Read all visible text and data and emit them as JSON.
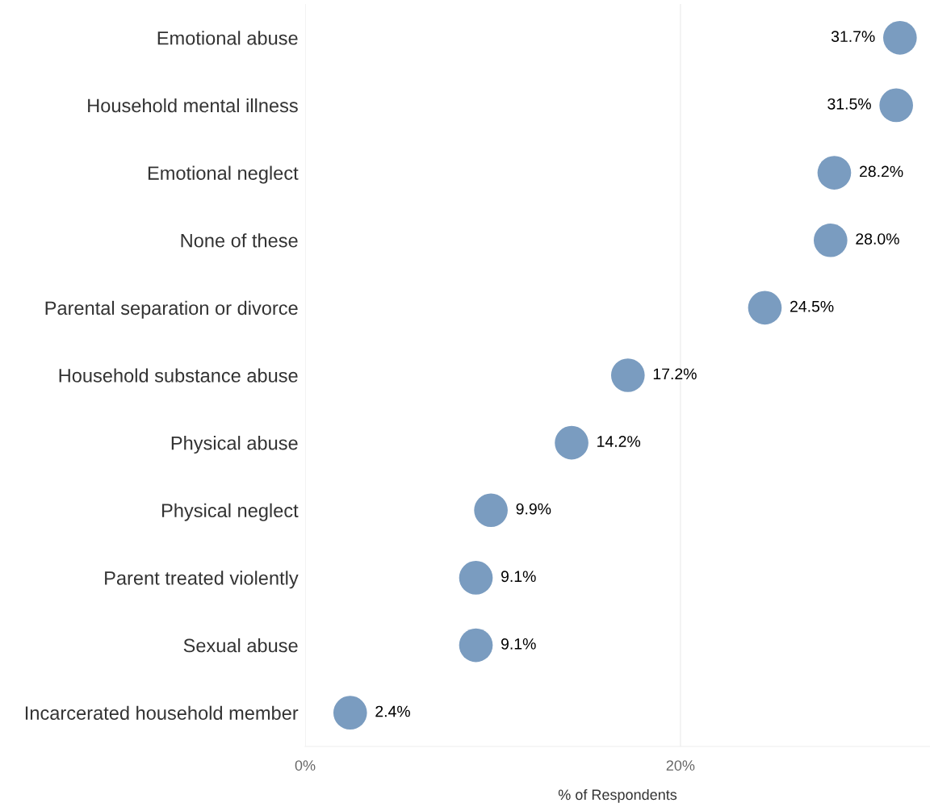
{
  "chart_data": {
    "type": "scatter",
    "orientation": "horizontal",
    "xlabel": "% of Respondents",
    "categories": [
      "Emotional abuse",
      "Household mental illness",
      "Emotional neglect",
      "None of these",
      "Parental separation or divorce",
      "Household substance abuse",
      "Physical abuse",
      "Physical neglect",
      "Parent treated violently",
      "Sexual abuse",
      "Incarcerated household member"
    ],
    "values": [
      31.7,
      31.5,
      28.2,
      28.0,
      24.5,
      17.2,
      14.2,
      9.9,
      9.1,
      9.1,
      2.4
    ],
    "value_labels": [
      "31.7%",
      "31.5%",
      "28.2%",
      "28.0%",
      "24.5%",
      "17.2%",
      "14.2%",
      "9.9%",
      "9.1%",
      "9.1%",
      "2.4%"
    ],
    "color": "#7a9cc0",
    "marker": "circle",
    "xlim": [
      0,
      33.3
    ],
    "xticks": [
      {
        "value": 0,
        "label": "0%"
      },
      {
        "value": 20,
        "label": "20%"
      }
    ],
    "grid": "x",
    "legend": false
  }
}
